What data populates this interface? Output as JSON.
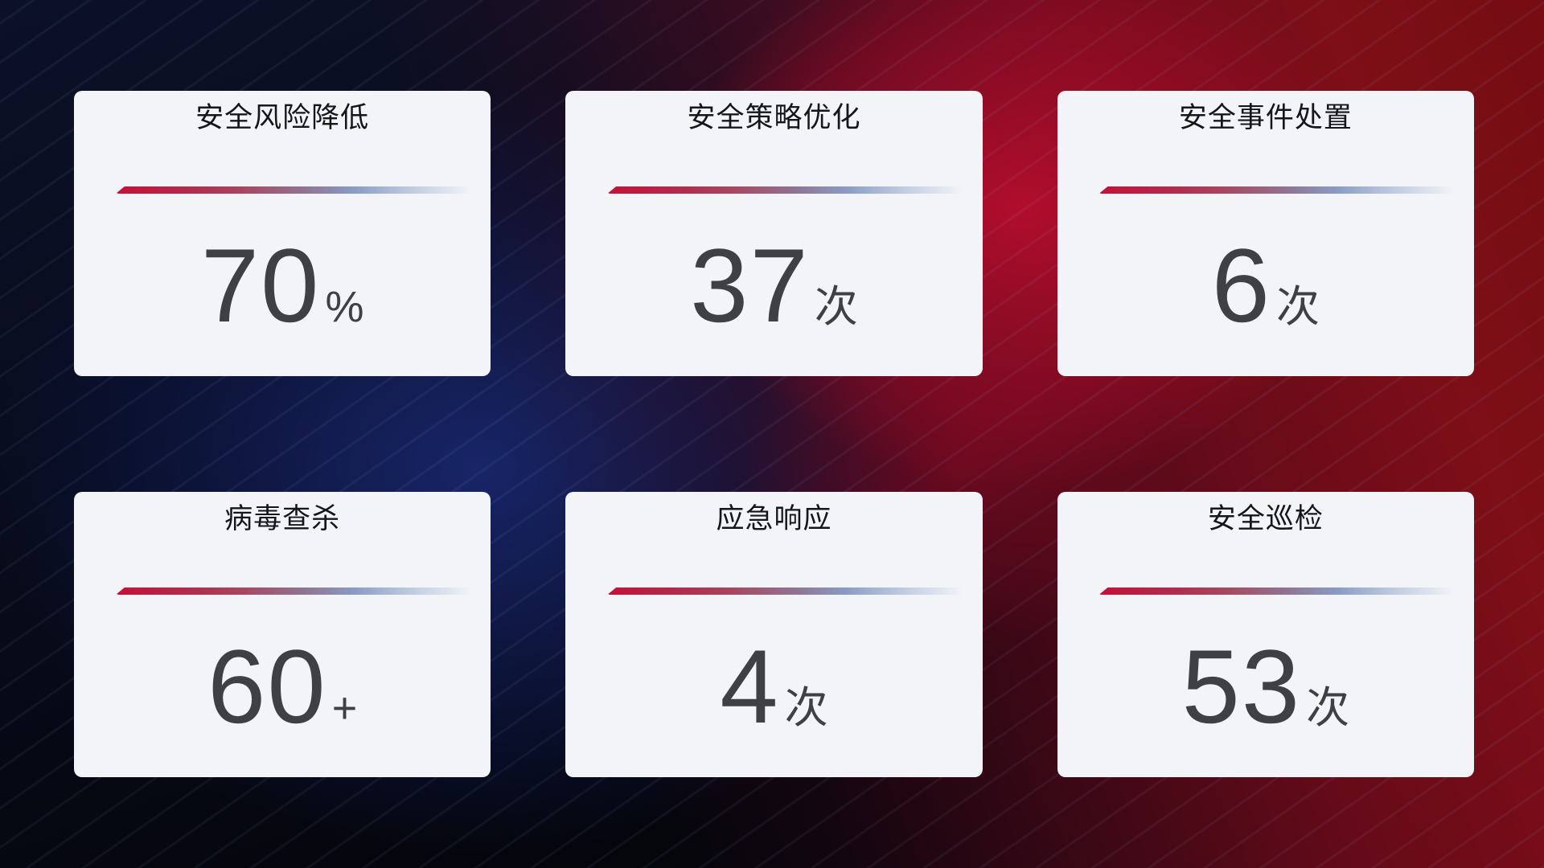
{
  "dashboard": {
    "cards": [
      {
        "title": "安全风险降低",
        "value": "70",
        "unit": "%"
      },
      {
        "title": "安全策略优化",
        "value": "37",
        "unit": "次"
      },
      {
        "title": "安全事件处置",
        "value": "6",
        "unit": "次"
      },
      {
        "title": "病毒查杀",
        "value": "60",
        "unit": "+"
      },
      {
        "title": "应急响应",
        "value": "4",
        "unit": "次"
      },
      {
        "title": "安全巡检",
        "value": "53",
        "unit": "次"
      }
    ],
    "colors": {
      "card_background": "#f2f4f8",
      "title_text": "#15161a",
      "value_text": "#3e4045",
      "divider_gradient_start": "#c51038",
      "divider_gradient_mid": "#8f7493",
      "divider_gradient_end": "#bac8de",
      "background_base": "#04050a",
      "background_navy": "#0c1128",
      "background_blue_glow": "#1a2870",
      "background_red_dark": "#750d13",
      "background_crimson": "#c80e30"
    }
  }
}
